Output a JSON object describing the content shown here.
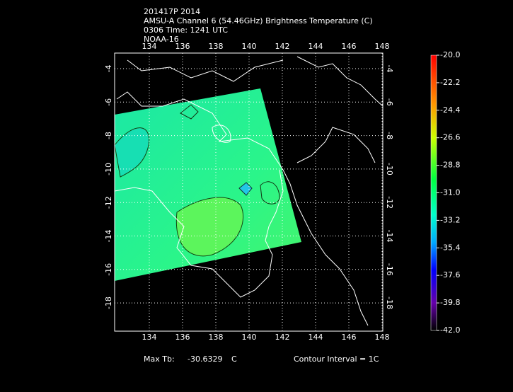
{
  "header": {
    "lines": [
      "201417P 2014",
      "AMSU-A Channel 6 (54.46GHz) Brightness Temperature (C)",
      "0306 Time: 1241 UTC",
      "NOAA-16"
    ]
  },
  "map": {
    "lon_ticks": [
      134,
      136,
      138,
      140,
      142,
      144,
      146,
      148
    ],
    "lat_ticks": [
      -4,
      -6,
      -8,
      -10,
      -12,
      -14,
      -16,
      -18
    ]
  },
  "colorbar": {
    "labels": [
      "-20.0",
      "-22.2",
      "-24.4",
      "-26.6",
      "-28.8",
      "-31.0",
      "-33.2",
      "-35.4",
      "-37.6",
      "-39.8",
      "-42.0"
    ]
  },
  "footer": {
    "max_label": "Max Tb:",
    "max_value": -30.6329,
    "unit": "C",
    "contour": "Contour Interval = 1C"
  }
}
